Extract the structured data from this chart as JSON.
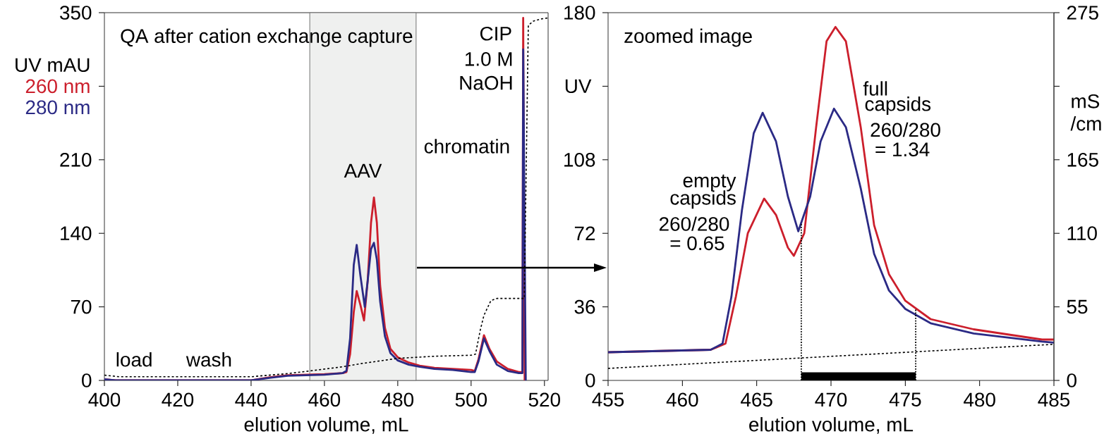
{
  "chart_data": [
    {
      "type": "line",
      "title": "QA after cation exchange capture",
      "xlabel": "elution volume, mL",
      "ylabel": "UV mAU",
      "xlim": [
        400,
        521
      ],
      "ylim": [
        0,
        350
      ],
      "xticks": [
        400,
        420,
        440,
        460,
        480,
        500,
        520
      ],
      "yticks": [
        0,
        70,
        140,
        210,
        {
          "value": 280,
          "label": null
        },
        350
      ],
      "legend": "left",
      "series": [
        {
          "name": "260 nm",
          "color": "#cc1f2c",
          "x": [
            400,
            403,
            440,
            445,
            450,
            460,
            465,
            466,
            467,
            468,
            468.8,
            469.8,
            470.8,
            471.8,
            472.7,
            473.5,
            474.3,
            475.2,
            476.5,
            478,
            480,
            483,
            486,
            490,
            495,
            500,
            501,
            502,
            503.5,
            505,
            507,
            510,
            513,
            514,
            514.2,
            514.6
          ],
          "values": [
            1,
            0,
            0,
            3,
            5,
            6,
            7,
            8,
            25,
            65,
            85,
            72,
            57,
            95,
            150,
            174,
            150,
            90,
            50,
            30,
            22,
            17,
            14,
            12,
            11,
            10,
            9,
            20,
            43,
            30,
            18,
            11,
            8,
            8,
            345,
            0
          ]
        },
        {
          "name": "280 nm",
          "color": "#2b2a85",
          "x": [
            400,
            403,
            440,
            445,
            450,
            460,
            465,
            466,
            467,
            468,
            468.8,
            469.8,
            471,
            471.8,
            472.7,
            473.5,
            474.3,
            475.2,
            476.5,
            478,
            480,
            483,
            486,
            490,
            495,
            500,
            501,
            502,
            503.5,
            505,
            507,
            510,
            513,
            514,
            514.2,
            514.9
          ],
          "values": [
            1,
            0,
            0,
            2.5,
            4.5,
            5.5,
            7,
            9,
            40,
            110,
            129,
            100,
            70,
            95,
            125,
            131,
            115,
            75,
            42,
            26,
            19,
            15,
            13,
            11,
            10,
            8,
            8,
            18,
            40,
            28,
            15,
            9,
            7,
            7,
            315,
            0
          ]
        },
        {
          "color": "#000000",
          "line_style": "dashed",
          "x": [
            400,
            404,
            440,
            445,
            450,
            456,
            465,
            470,
            480,
            490,
            500,
            501.2,
            502.5,
            503.5,
            505.4,
            507,
            514.5,
            515.6,
            517,
            519,
            521
          ],
          "values": [
            5,
            3.5,
            3.5,
            5,
            6.5,
            9,
            13,
            16,
            21,
            23,
            24,
            25,
            48,
            62,
            76,
            78,
            78,
            338,
            342,
            344,
            345
          ]
        }
      ],
      "bands": [
        {
          "axis": "x",
          "from": 456,
          "to": 485,
          "label": "AAV",
          "color": "#eff0ef"
        }
      ],
      "annotations": [
        "load",
        "wash",
        "CIP",
        "1.0 M",
        "NaOH",
        "chromatin"
      ]
    },
    {
      "type": "line",
      "title": "zoomed image",
      "xlabel": "elution volume, mL",
      "ylabel": "UV",
      "y2label": "mS /cm",
      "xlim": [
        455,
        485
      ],
      "ylim": [
        0,
        180
      ],
      "y2lim": [
        0,
        275
      ],
      "xticks": [
        455,
        460,
        465,
        470,
        475,
        480,
        485
      ],
      "yticks": [
        0,
        36,
        72,
        108,
        {
          "value": 144,
          "label": null
        },
        180
      ],
      "y2ticks": [
        0,
        55,
        110,
        165,
        {
          "value": 220,
          "label": null
        },
        275
      ],
      "series": [
        {
          "color": "#cc1f2c",
          "x": [
            455,
            461.9,
            462.9,
            463.6,
            464.4,
            465.5,
            466.3,
            467.1,
            467.5,
            468.2,
            469,
            469.7,
            470.3,
            471,
            472,
            472.9,
            473.9,
            475,
            476.7,
            479.6,
            484.2,
            485
          ],
          "values": [
            13.8,
            15,
            18,
            41,
            72,
            89,
            81,
            65,
            61,
            72,
            124,
            166,
            173,
            166,
            124,
            76,
            52,
            39,
            30,
            25,
            20,
            20
          ]
        },
        {
          "color": "#2b2a85",
          "x": [
            455,
            461.9,
            462.7,
            463.3,
            464,
            464.8,
            465.4,
            466.3,
            467.1,
            467.8,
            468.6,
            469.3,
            470.2,
            471,
            472,
            472.9,
            473.9,
            475,
            476.7,
            479.6,
            484.2,
            485
          ],
          "values": [
            13.8,
            15,
            18,
            41,
            83,
            121,
            131,
            117,
            90,
            73,
            90,
            117,
            133,
            124,
            94,
            62,
            44,
            35,
            28,
            23,
            19,
            18.5
          ]
        },
        {
          "color": "#000000",
          "line_style": "dashed",
          "axis": "y2",
          "x": [
            455,
            470,
            485
          ],
          "values": [
            9,
            18,
            27
          ]
        },
        {
          "type": "area",
          "color": "#000000",
          "x": [
            468,
            475.7
          ],
          "values": [
            4,
            4
          ]
        }
      ],
      "ref_lines": [
        {
          "axis": "x",
          "value": 468,
          "line_style": "dotted"
        },
        {
          "axis": "x",
          "value": 475.7,
          "line_style": "dotted"
        }
      ],
      "annotations": [
        "empty",
        "capsids",
        "260/280",
        "= 0.65",
        "full",
        "capsids",
        "260/280",
        "= 1.34"
      ]
    }
  ]
}
